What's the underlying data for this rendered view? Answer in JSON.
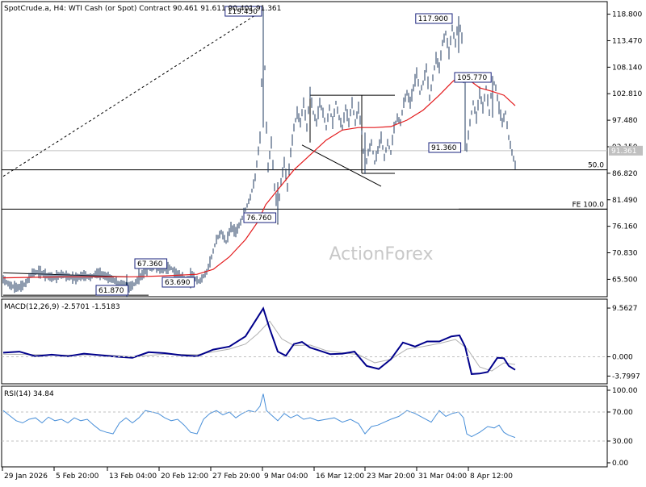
{
  "chart_data": [
    {
      "type": "ohlc",
      "title": "SpotCrude.a, H4:  WTI Cash (or Spot) Contract  90.461 91.611 90.401 91.361",
      "watermark": "ActionForex",
      "y_ticks": [
        "118.800",
        "113.470",
        "108.140",
        "102.810",
        "97.480",
        "92.150",
        "86.820",
        "81.490",
        "76.160",
        "70.830",
        "65.500"
      ],
      "ylim": [
        62.0,
        121.0
      ],
      "last_price": "91.361",
      "colors": {
        "bars": "#1f3a5f",
        "ma": "#e31a1c",
        "frame": "#000000",
        "label_border": "#1a237e",
        "level_line": "#000000"
      },
      "ma_name": "",
      "price_points": [
        [
          0,
          65.5
        ],
        [
          9,
          64.2
        ],
        [
          18,
          63.8
        ],
        [
          27,
          64.5
        ],
        [
          36,
          66.8
        ],
        [
          45,
          67.0
        ],
        [
          54,
          66.2
        ],
        [
          63,
          65.8
        ],
        [
          72,
          66.5
        ],
        [
          81,
          66.0
        ],
        [
          90,
          65.7
        ],
        [
          99,
          66.3
        ],
        [
          108,
          65.9
        ],
        [
          117,
          66.8
        ],
        [
          126,
          66.2
        ],
        [
          135,
          65.5
        ],
        [
          144,
          64.5
        ],
        [
          153,
          63.6
        ],
        [
          162,
          64.5
        ],
        [
          171,
          66.2
        ],
        [
          180,
          67.8
        ],
        [
          189,
          68.2
        ],
        [
          198,
          67.5
        ],
        [
          207,
          67.9
        ],
        [
          216,
          66.3
        ],
        [
          225,
          65.6
        ],
        [
          234,
          66.0
        ],
        [
          243,
          65.0
        ],
        [
          252,
          67.0
        ],
        [
          258,
          70.0
        ],
        [
          264,
          73.5
        ],
        [
          270,
          75.0
        ],
        [
          276,
          73.0
        ],
        [
          282,
          76.0
        ],
        [
          288,
          75.0
        ],
        [
          294,
          77.0
        ],
        [
          300,
          79.5
        ],
        [
          306,
          82.0
        ],
        [
          312,
          86.0
        ],
        [
          315,
          90.0
        ],
        [
          318,
          94.0
        ],
        [
          320,
          105.0
        ],
        [
          322,
          119.45
        ],
        [
          324,
          108.0
        ],
        [
          326,
          96.0
        ],
        [
          328,
          88.0
        ],
        [
          332,
          93.0
        ],
        [
          336,
          84.0
        ],
        [
          340,
          79.0
        ],
        [
          344,
          85.0
        ],
        [
          348,
          89.0
        ],
        [
          352,
          84.0
        ],
        [
          356,
          91.0
        ],
        [
          360,
          96.0
        ],
        [
          364,
          99.0
        ],
        [
          368,
          97.0
        ],
        [
          372,
          101.0
        ],
        [
          376,
          96.0
        ],
        [
          380,
          103.0
        ],
        [
          384,
          99.0
        ],
        [
          388,
          97.0
        ],
        [
          392,
          101.0
        ],
        [
          396,
          99.0
        ],
        [
          400,
          96.0
        ],
        [
          404,
          100.0
        ],
        [
          408,
          97.0
        ],
        [
          412,
          101.0
        ],
        [
          416,
          98.0
        ],
        [
          420,
          96.0
        ],
        [
          424,
          100.0
        ],
        [
          428,
          97.0
        ],
        [
          432,
          101.0
        ],
        [
          436,
          97.0
        ],
        [
          440,
          100.0
        ],
        [
          444,
          95.0
        ],
        [
          448,
          87.5
        ],
        [
          452,
          91.0
        ],
        [
          456,
          93.0
        ],
        [
          460,
          89.0
        ],
        [
          464,
          91.5
        ],
        [
          468,
          94.0
        ],
        [
          472,
          90.0
        ],
        [
          476,
          93.0
        ],
        [
          480,
          91.0
        ],
        [
          484,
          96.0
        ],
        [
          488,
          98.0
        ],
        [
          492,
          97.0
        ],
        [
          496,
          101.0
        ],
        [
          500,
          103.0
        ],
        [
          504,
          101.0
        ],
        [
          508,
          104.0
        ],
        [
          512,
          107.0
        ],
        [
          516,
          103.0
        ],
        [
          520,
          105.0
        ],
        [
          524,
          108.0
        ],
        [
          528,
          102.0
        ],
        [
          532,
          106.0
        ],
        [
          536,
          110.0
        ],
        [
          540,
          108.0
        ],
        [
          544,
          113.0
        ],
        [
          548,
          115.0
        ],
        [
          552,
          111.0
        ],
        [
          556,
          116.0
        ],
        [
          560,
          113.0
        ],
        [
          564,
          117.9
        ],
        [
          568,
          114.0
        ],
        [
          570,
          106.0
        ],
        [
          572,
          96.0
        ],
        [
          574,
          92.0
        ],
        [
          578,
          97.0
        ],
        [
          582,
          101.0
        ],
        [
          586,
          98.0
        ],
        [
          590,
          103.0
        ],
        [
          594,
          100.0
        ],
        [
          598,
          104.0
        ],
        [
          602,
          99.0
        ],
        [
          606,
          105.8
        ],
        [
          610,
          104.0
        ],
        [
          614,
          100.0
        ],
        [
          618,
          97.0
        ],
        [
          622,
          99.0
        ],
        [
          626,
          94.0
        ],
        [
          630,
          91.0
        ],
        [
          634,
          88.5
        ]
      ],
      "ma_points": [
        [
          0,
          65.8
        ],
        [
          40,
          65.9
        ],
        [
          80,
          66.0
        ],
        [
          120,
          66.0
        ],
        [
          160,
          66.0
        ],
        [
          200,
          66.2
        ],
        [
          240,
          66.5
        ],
        [
          260,
          67.5
        ],
        [
          280,
          70.0
        ],
        [
          300,
          73.5
        ],
        [
          315,
          77.0
        ],
        [
          325,
          80.5
        ],
        [
          335,
          82.5
        ],
        [
          345,
          84.5
        ],
        [
          360,
          87.5
        ],
        [
          380,
          90.5
        ],
        [
          400,
          93.5
        ],
        [
          420,
          95.5
        ],
        [
          440,
          96.0
        ],
        [
          460,
          96.0
        ],
        [
          480,
          96.2
        ],
        [
          500,
          97.5
        ],
        [
          520,
          99.5
        ],
        [
          540,
          102.5
        ],
        [
          555,
          105.0
        ],
        [
          565,
          106.5
        ],
        [
          575,
          105.8
        ],
        [
          590,
          104.0
        ],
        [
          605,
          103.3
        ],
        [
          620,
          102.5
        ],
        [
          634,
          100.4
        ]
      ],
      "annotations": [
        {
          "label": "119.450",
          "t": 322,
          "y": 119.45
        },
        {
          "label": "117.900",
          "t": 564,
          "y": 117.9
        },
        {
          "label": "105.770",
          "t": 600,
          "y": 105.77
        },
        {
          "label": "91.360",
          "t": 572,
          "y": 91.36
        },
        {
          "label": "76.760",
          "t": 339,
          "y": 76.76
        },
        {
          "label": "67.360",
          "t": 168,
          "y": 67.36
        },
        {
          "label": "63.690",
          "t": 232,
          "y": 63.69
        },
        {
          "label": "61.870",
          "t": 152,
          "y": 61.87
        }
      ],
      "levels": [
        {
          "label": "50.0",
          "y": 87.5
        },
        {
          "label": "FE 100.0",
          "y": 79.6
        }
      ]
    },
    {
      "type": "line",
      "title": "MACD(12,26,9) -2.5701 -1.5183",
      "y_ticks": [
        "9.5627",
        "0.000",
        "-3.7997"
      ],
      "ylim": [
        -5.0,
        11.0
      ],
      "colors": {
        "macd": "#00008b",
        "signal": "#b0b0b0"
      },
      "macd_points": [
        [
          0,
          0.8
        ],
        [
          20,
          1.0
        ],
        [
          40,
          0.1
        ],
        [
          60,
          0.4
        ],
        [
          80,
          0.1
        ],
        [
          100,
          0.6
        ],
        [
          120,
          0.3
        ],
        [
          140,
          0.0
        ],
        [
          160,
          -0.2
        ],
        [
          180,
          0.9
        ],
        [
          200,
          0.7
        ],
        [
          220,
          0.3
        ],
        [
          240,
          0.1
        ],
        [
          260,
          1.4
        ],
        [
          280,
          2.0
        ],
        [
          300,
          4.0
        ],
        [
          312,
          7.0
        ],
        [
          322,
          9.5
        ],
        [
          330,
          5.5
        ],
        [
          340,
          1.0
        ],
        [
          350,
          0.2
        ],
        [
          360,
          2.5
        ],
        [
          370,
          2.9
        ],
        [
          380,
          1.8
        ],
        [
          392,
          1.2
        ],
        [
          405,
          0.5
        ],
        [
          420,
          0.6
        ],
        [
          435,
          1.0
        ],
        [
          450,
          -1.8
        ],
        [
          465,
          -2.4
        ],
        [
          480,
          -0.5
        ],
        [
          495,
          2.8
        ],
        [
          510,
          2.0
        ],
        [
          525,
          3.0
        ],
        [
          540,
          3.0
        ],
        [
          555,
          4.0
        ],
        [
          565,
          4.2
        ],
        [
          572,
          2.0
        ],
        [
          580,
          -3.4
        ],
        [
          590,
          -3.3
        ],
        [
          600,
          -3.0
        ],
        [
          612,
          -0.2
        ],
        [
          620,
          -0.3
        ],
        [
          626,
          -1.8
        ],
        [
          634,
          -2.57
        ]
      ],
      "signal_points": [
        [
          0,
          0.5
        ],
        [
          40,
          0.4
        ],
        [
          80,
          0.3
        ],
        [
          120,
          0.4
        ],
        [
          160,
          0.0
        ],
        [
          200,
          0.5
        ],
        [
          240,
          0.4
        ],
        [
          280,
          1.5
        ],
        [
          300,
          2.5
        ],
        [
          315,
          4.5
        ],
        [
          330,
          7.0
        ],
        [
          345,
          3.5
        ],
        [
          360,
          2.2
        ],
        [
          380,
          2.3
        ],
        [
          400,
          1.2
        ],
        [
          420,
          0.8
        ],
        [
          440,
          0.4
        ],
        [
          460,
          -1.2
        ],
        [
          480,
          -0.5
        ],
        [
          500,
          1.5
        ],
        [
          520,
          2.0
        ],
        [
          540,
          2.6
        ],
        [
          560,
          3.4
        ],
        [
          575,
          1.5
        ],
        [
          590,
          -2.0
        ],
        [
          605,
          -2.8
        ],
        [
          620,
          -1.2
        ],
        [
          634,
          -1.52
        ]
      ]
    },
    {
      "type": "line",
      "title": "RSI(14) 34.84",
      "y_ticks": [
        "100.00",
        "70.00",
        "30.00",
        "0.00"
      ],
      "ylim": [
        0,
        100
      ],
      "colors": {
        "rsi": "#4a90d9"
      },
      "rsi_points": [
        [
          0,
          72
        ],
        [
          8,
          65
        ],
        [
          16,
          58
        ],
        [
          24,
          55
        ],
        [
          32,
          60
        ],
        [
          40,
          62
        ],
        [
          48,
          55
        ],
        [
          56,
          63
        ],
        [
          64,
          58
        ],
        [
          72,
          60
        ],
        [
          80,
          55
        ],
        [
          88,
          62
        ],
        [
          96,
          58
        ],
        [
          104,
          60
        ],
        [
          112,
          52
        ],
        [
          120,
          45
        ],
        [
          128,
          42
        ],
        [
          136,
          40
        ],
        [
          144,
          55
        ],
        [
          152,
          62
        ],
        [
          160,
          55
        ],
        [
          168,
          62
        ],
        [
          176,
          72
        ],
        [
          184,
          70
        ],
        [
          192,
          68
        ],
        [
          200,
          62
        ],
        [
          208,
          58
        ],
        [
          216,
          60
        ],
        [
          224,
          52
        ],
        [
          232,
          42
        ],
        [
          240,
          40
        ],
        [
          248,
          60
        ],
        [
          256,
          68
        ],
        [
          264,
          72
        ],
        [
          272,
          66
        ],
        [
          280,
          70
        ],
        [
          288,
          62
        ],
        [
          296,
          68
        ],
        [
          304,
          72
        ],
        [
          312,
          70
        ],
        [
          318,
          78
        ],
        [
          322,
          95
        ],
        [
          326,
          72
        ],
        [
          332,
          66
        ],
        [
          340,
          58
        ],
        [
          348,
          68
        ],
        [
          356,
          62
        ],
        [
          364,
          66
        ],
        [
          372,
          60
        ],
        [
          380,
          62
        ],
        [
          390,
          58
        ],
        [
          400,
          60
        ],
        [
          410,
          62
        ],
        [
          420,
          56
        ],
        [
          430,
          60
        ],
        [
          440,
          54
        ],
        [
          448,
          40
        ],
        [
          456,
          50
        ],
        [
          464,
          52
        ],
        [
          472,
          56
        ],
        [
          480,
          60
        ],
        [
          490,
          64
        ],
        [
          500,
          72
        ],
        [
          510,
          68
        ],
        [
          520,
          62
        ],
        [
          530,
          56
        ],
        [
          540,
          72
        ],
        [
          548,
          64
        ],
        [
          556,
          68
        ],
        [
          564,
          70
        ],
        [
          570,
          62
        ],
        [
          574,
          40
        ],
        [
          580,
          36
        ],
        [
          590,
          42
        ],
        [
          600,
          50
        ],
        [
          608,
          48
        ],
        [
          614,
          52
        ],
        [
          620,
          42
        ],
        [
          626,
          38
        ],
        [
          634,
          34.84
        ]
      ]
    },
    {
      "type": "time_axis",
      "x_ticks": [
        "29 Jan 2026",
        "5 Feb 20:00",
        "13 Feb 04:00",
        "20 Feb 12:00",
        "27 Feb 20:00",
        "9 Mar 04:00",
        "16 Mar 12:00",
        "23 Mar 20:00",
        "31 Mar 04:00",
        "8 Apr 12:00"
      ]
    }
  ]
}
